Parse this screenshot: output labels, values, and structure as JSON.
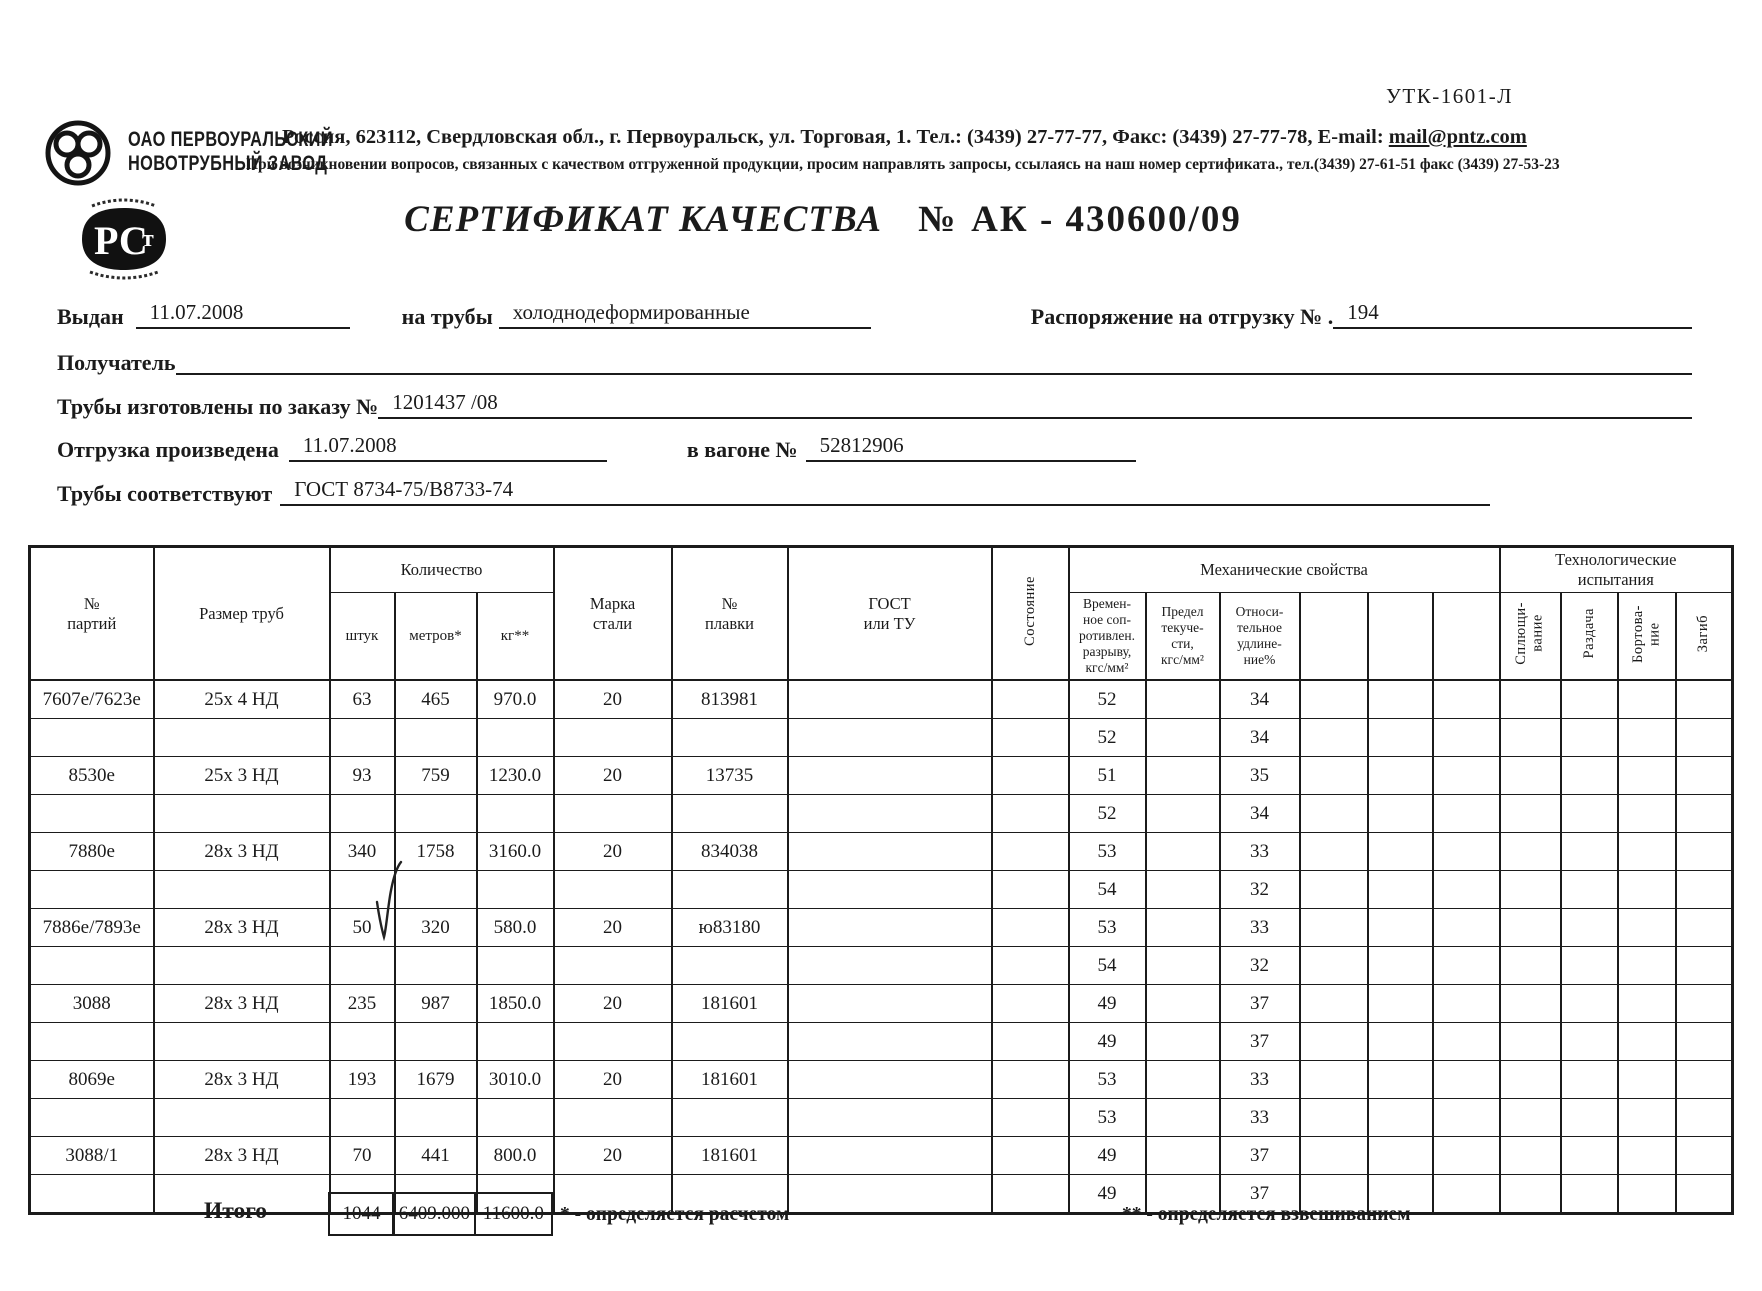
{
  "form_code": "УТК-1601-Л",
  "company": {
    "name_line1": "ОАО ПЕРВОУРАЛЬСКИЙ",
    "name_line2": "НОВОТРУБНЫЙ ЗАВОД",
    "address_line": "Россия, 623112, Свердловская обл., г. Первоуральск, ул. Торговая, 1. Тел.: (3439) 27-77-77, Факс: (3439) 27-77-78,  E-mail: ",
    "email": "mail@pntz.com",
    "notice_line": "При возникновении вопросов, связанных с качеством отгруженной продукции, просим направлять запросы, ссылаясь на наш номер сертификата., тел.(3439) 27-61-51 факс (3439) 27-53-23",
    "cert_mark": "РСТ"
  },
  "title": {
    "label": "СЕРТИФИКАТ КАЧЕСТВА",
    "number_label": "№",
    "number": "АК - 430600/09"
  },
  "fields": {
    "issued_label": "Выдан",
    "issued_value": "11.07.2008",
    "for_pipes_label": "на трубы",
    "for_pipes_value": "холоднодеформированные",
    "shipping_order_label": "Распоряжение на отгрузку № .",
    "shipping_order_value": "194",
    "receiver_label": "Получатель",
    "receiver_value": "",
    "order_label": "Трубы изготовлены по заказу №",
    "order_value": "1201437  /08",
    "shipped_label": "Отгрузка произведена",
    "shipped_value": "11.07.2008",
    "wagon_label": "в вагоне №",
    "wagon_value": "52812906",
    "standard_label": "Трубы соответствуют",
    "standard_value": "ГОСТ 8734-75/В8733-74"
  },
  "table": {
    "headers": {
      "batch": "№\nпартий",
      "size": "Размер труб",
      "qty_group": "Количество",
      "pieces": "штук",
      "meters": "метров*",
      "kg": "кг**",
      "steel": "Марка\nстали",
      "heat": "№\nплавки",
      "gost": "ГОСТ\nили ТУ",
      "condition": "Состояние",
      "mech_group": "Механические свойства",
      "tensile": "Времен-\nное соп-\nротивлен.\nразрыву,\nкгс/мм²",
      "yield": "Предел\nтекуче-\nсти,\nкгс/мм²",
      "elongation": "Относи-\nтельное\nудлине-\nние%",
      "tech_group": "Технологические\nиспытания",
      "flattening": "Сплющи-\nвание",
      "expansion": "Раздача",
      "flanging": "Бортова-\nние",
      "bend": "Загиб"
    },
    "rows": [
      [
        "7607е/7623е",
        "25х 4 НД",
        "63",
        "465",
        "970.0",
        "20",
        "813981",
        "",
        "",
        "52",
        "",
        "34",
        "",
        "",
        "",
        "",
        "",
        "",
        ""
      ],
      [
        "",
        "",
        "",
        "",
        "",
        "",
        "",
        "",
        "",
        "52",
        "",
        "34",
        "",
        "",
        "",
        "",
        "",
        "",
        ""
      ],
      [
        "8530е",
        "25х 3 НД",
        "93",
        "759",
        "1230.0",
        "20",
        "13735",
        "",
        "",
        "51",
        "",
        "35",
        "",
        "",
        "",
        "",
        "",
        "",
        ""
      ],
      [
        "",
        "",
        "",
        "",
        "",
        "",
        "",
        "",
        "",
        "52",
        "",
        "34",
        "",
        "",
        "",
        "",
        "",
        "",
        ""
      ],
      [
        "7880е",
        "28х 3 НД",
        "340",
        "1758",
        "3160.0",
        "20",
        "834038",
        "",
        "",
        "53",
        "",
        "33",
        "",
        "",
        "",
        "",
        "",
        "",
        ""
      ],
      [
        "",
        "",
        "",
        "",
        "",
        "",
        "",
        "",
        "",
        "54",
        "",
        "32",
        "",
        "",
        "",
        "",
        "",
        "",
        ""
      ],
      [
        "7886е/7893е",
        "28х 3 НД",
        "50",
        "320",
        "580.0",
        "20",
        "ю83180",
        "",
        "",
        "53",
        "",
        "33",
        "",
        "",
        "",
        "",
        "",
        "",
        ""
      ],
      [
        "",
        "",
        "",
        "",
        "",
        "",
        "",
        "",
        "",
        "54",
        "",
        "32",
        "",
        "",
        "",
        "",
        "",
        "",
        ""
      ],
      [
        "3088",
        "28х 3 НД",
        "235",
        "987",
        "1850.0",
        "20",
        "181601",
        "",
        "",
        "49",
        "",
        "37",
        "",
        "",
        "",
        "",
        "",
        "",
        ""
      ],
      [
        "",
        "",
        "",
        "",
        "",
        "",
        "",
        "",
        "",
        "49",
        "",
        "37",
        "",
        "",
        "",
        "",
        "",
        "",
        ""
      ],
      [
        "8069е",
        "28х 3 НД",
        "193",
        "1679",
        "3010.0",
        "20",
        "181601",
        "",
        "",
        "53",
        "",
        "33",
        "",
        "",
        "",
        "",
        "",
        "",
        ""
      ],
      [
        "",
        "",
        "",
        "",
        "",
        "",
        "",
        "",
        "",
        "53",
        "",
        "33",
        "",
        "",
        "",
        "",
        "",
        "",
        ""
      ],
      [
        "3088/1",
        "28х 3 НД",
        "70",
        "441",
        "800.0",
        "20",
        "181601",
        "",
        "",
        "49",
        "",
        "37",
        "",
        "",
        "",
        "",
        "",
        "",
        ""
      ],
      [
        "",
        "",
        "",
        "",
        "",
        "",
        "",
        "",
        "",
        "49",
        "",
        "37",
        "",
        "",
        "",
        "",
        "",
        "",
        ""
      ]
    ],
    "totals": {
      "label": "Итого",
      "pieces": "1044",
      "meters": "6409.000",
      "kg": "11600.0"
    },
    "notes": {
      "note1": "* - определяется расчетом",
      "note2": "** - определяется взвешиванием"
    }
  }
}
